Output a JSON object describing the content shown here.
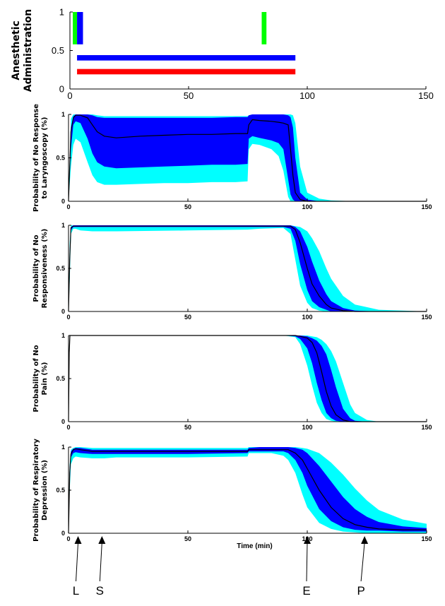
{
  "chart_data": [
    {
      "type": "bar",
      "ylabel": [
        "Anesthetic",
        "Administration"
      ],
      "xlim": [
        0,
        150
      ],
      "ylim": [
        0,
        1
      ],
      "xticks": [
        "0",
        "50",
        "100",
        "150"
      ],
      "yticks": [
        "0",
        "0.5",
        "1"
      ],
      "bolus_bars": [
        {
          "x_start": 1.2,
          "x_end": 3.0,
          "y_start": 0.58,
          "y_end": 1.0,
          "color": "#00ff00"
        },
        {
          "x_start": 3.0,
          "x_end": 5.5,
          "y_start": 0.58,
          "y_end": 1.0,
          "color": "#0000ff"
        },
        {
          "x_start": 80.8,
          "x_end": 82.8,
          "y_start": 0.58,
          "y_end": 1.0,
          "color": "#00ff00"
        }
      ],
      "infusion_bars": [
        {
          "x_start": 3.0,
          "x_end": 95,
          "y_start": 0.37,
          "y_end": 0.44,
          "color": "#0000ff"
        },
        {
          "x_start": 3.0,
          "x_end": 95,
          "y_start": 0.19,
          "y_end": 0.26,
          "color": "#ff0000"
        }
      ]
    },
    {
      "type": "area",
      "ylabel": [
        "Probability of No Response",
        "to Laryngoscopy (%)"
      ],
      "xlim": [
        0,
        150
      ],
      "ylim": [
        0,
        1
      ],
      "xticks": [
        "0",
        "50",
        "100",
        "150"
      ],
      "yticks": [
        "0",
        "0.5",
        "1"
      ],
      "x": [
        0,
        1,
        2,
        3,
        5,
        8,
        10,
        12,
        15,
        20,
        30,
        40,
        50,
        60,
        70,
        75,
        75.5,
        77,
        80,
        85,
        88,
        90,
        92,
        93,
        94,
        95,
        97,
        100,
        105,
        110,
        120,
        150
      ],
      "outer_hi": [
        0,
        0.95,
        1.0,
        1.0,
        1.0,
        1.0,
        1.0,
        0.99,
        0.98,
        0.98,
        0.98,
        0.98,
        0.98,
        0.98,
        0.98,
        0.98,
        0.99,
        1.0,
        1.0,
        1.0,
        1.0,
        1.0,
        1.0,
        1.0,
        0.99,
        0.9,
        0.4,
        0.1,
        0.03,
        0.01,
        0.0,
        0.0
      ],
      "inner_hi": [
        0,
        0.85,
        0.98,
        1.0,
        1.0,
        1.0,
        0.99,
        0.97,
        0.96,
        0.96,
        0.96,
        0.96,
        0.96,
        0.96,
        0.97,
        0.97,
        0.99,
        1.0,
        1.0,
        1.0,
        1.0,
        1.0,
        0.99,
        0.97,
        0.85,
        0.5,
        0.1,
        0.02,
        0.0,
        0.0,
        0.0,
        0.0
      ],
      "median": [
        0,
        0.8,
        0.96,
        0.99,
        0.99,
        0.96,
        0.88,
        0.8,
        0.75,
        0.73,
        0.75,
        0.76,
        0.77,
        0.77,
        0.78,
        0.78,
        0.88,
        0.94,
        0.93,
        0.92,
        0.91,
        0.9,
        0.88,
        0.6,
        0.3,
        0.1,
        0.02,
        0.0,
        0.0,
        0.0,
        0.0,
        0.0
      ],
      "inner_lo": [
        0,
        0.6,
        0.88,
        0.92,
        0.9,
        0.72,
        0.55,
        0.45,
        0.4,
        0.38,
        0.39,
        0.4,
        0.41,
        0.42,
        0.42,
        0.43,
        0.72,
        0.75,
        0.73,
        0.7,
        0.67,
        0.6,
        0.25,
        0.08,
        0.02,
        0.0,
        0.0,
        0.0,
        0.0,
        0.0,
        0.0,
        0.0
      ],
      "outer_lo": [
        0,
        0.4,
        0.65,
        0.72,
        0.68,
        0.45,
        0.3,
        0.22,
        0.19,
        0.19,
        0.2,
        0.21,
        0.21,
        0.22,
        0.22,
        0.23,
        0.6,
        0.66,
        0.65,
        0.6,
        0.52,
        0.35,
        0.05,
        0.0,
        0.0,
        0.0,
        0.0,
        0.0,
        0.0,
        0.0,
        0.0,
        0.0
      ]
    },
    {
      "type": "area",
      "ylabel": [
        "Probability of No",
        "Responsiveness (%)"
      ],
      "xlim": [
        0,
        150
      ],
      "ylim": [
        0,
        1
      ],
      "xticks": [
        "0",
        "50",
        "100",
        "150"
      ],
      "yticks": [
        "0",
        "0.5",
        "1"
      ],
      "x": [
        0,
        0.5,
        1,
        2,
        3,
        5,
        10,
        20,
        50,
        75,
        80,
        90,
        93,
        95,
        97,
        100,
        102,
        105,
        108,
        110,
        115,
        120,
        130,
        140,
        150
      ],
      "outer_hi": [
        0,
        0.8,
        1.0,
        1.0,
        1.0,
        1.0,
        1.0,
        1.0,
        1.0,
        1.0,
        1.0,
        1.0,
        1.0,
        0.99,
        0.98,
        0.93,
        0.85,
        0.7,
        0.5,
        0.38,
        0.18,
        0.08,
        0.02,
        0.01,
        0.0
      ],
      "inner_hi": [
        0,
        0.7,
        0.98,
        1.0,
        1.0,
        1.0,
        1.0,
        1.0,
        1.0,
        1.0,
        1.0,
        1.0,
        1.0,
        0.98,
        0.93,
        0.75,
        0.58,
        0.36,
        0.2,
        0.12,
        0.04,
        0.01,
        0.0,
        0.0,
        0.0
      ],
      "median": [
        0,
        0.6,
        0.97,
        0.99,
        0.99,
        0.99,
        0.99,
        0.99,
        0.99,
        0.99,
        0.99,
        0.99,
        0.99,
        0.95,
        0.8,
        0.5,
        0.32,
        0.18,
        0.08,
        0.04,
        0.01,
        0.0,
        0.0,
        0.0,
        0.0
      ],
      "inner_lo": [
        0,
        0.5,
        0.94,
        0.98,
        0.98,
        0.98,
        0.98,
        0.98,
        0.98,
        0.98,
        0.98,
        0.98,
        0.96,
        0.82,
        0.55,
        0.25,
        0.12,
        0.05,
        0.02,
        0.0,
        0.0,
        0.0,
        0.0,
        0.0,
        0.0
      ],
      "outer_lo": [
        0,
        0.35,
        0.9,
        0.96,
        0.96,
        0.94,
        0.93,
        0.93,
        0.94,
        0.95,
        0.96,
        0.97,
        0.9,
        0.6,
        0.3,
        0.1,
        0.04,
        0.01,
        0.0,
        0.0,
        0.0,
        0.0,
        0.0,
        0.0,
        0.0
      ]
    },
    {
      "type": "area",
      "ylabel": [
        "Probability of No",
        "Pain (%)"
      ],
      "xlim": [
        0,
        150
      ],
      "ylim": [
        0,
        1
      ],
      "xticks": [
        "0",
        "50",
        "100",
        "150"
      ],
      "yticks": [
        "0",
        "0.5",
        "1"
      ],
      "x": [
        0,
        0.3,
        0.6,
        1,
        5,
        50,
        90,
        95,
        97,
        100,
        102,
        104,
        106,
        108,
        110,
        112,
        115,
        118,
        120,
        125,
        130,
        150
      ],
      "outer_hi": [
        0,
        0.9,
        1.0,
        1.0,
        1.0,
        1.0,
        1.0,
        1.0,
        1.0,
        1.0,
        0.99,
        0.98,
        0.95,
        0.9,
        0.82,
        0.7,
        0.45,
        0.2,
        0.1,
        0.02,
        0.0,
        0.0
      ],
      "inner_hi": [
        0,
        0.85,
        1.0,
        1.0,
        1.0,
        1.0,
        1.0,
        1.0,
        1.0,
        0.99,
        0.97,
        0.94,
        0.88,
        0.78,
        0.6,
        0.4,
        0.15,
        0.04,
        0.01,
        0.0,
        0.0,
        0.0
      ],
      "median": [
        0,
        0.8,
        1.0,
        1.0,
        1.0,
        1.0,
        1.0,
        1.0,
        0.99,
        0.97,
        0.92,
        0.8,
        0.58,
        0.35,
        0.18,
        0.08,
        0.02,
        0.0,
        0.0,
        0.0,
        0.0,
        0.0
      ],
      "inner_lo": [
        0,
        0.75,
        1.0,
        1.0,
        1.0,
        1.0,
        1.0,
        0.99,
        0.96,
        0.85,
        0.68,
        0.45,
        0.25,
        0.1,
        0.04,
        0.01,
        0.0,
        0.0,
        0.0,
        0.0,
        0.0,
        0.0
      ],
      "outer_lo": [
        0,
        0.7,
        0.99,
        1.0,
        1.0,
        1.0,
        1.0,
        0.98,
        0.9,
        0.65,
        0.42,
        0.22,
        0.1,
        0.03,
        0.01,
        0.0,
        0.0,
        0.0,
        0.0,
        0.0,
        0.0,
        0.0
      ]
    },
    {
      "type": "area",
      "ylabel": [
        "Probability of Respiratory",
        "Depression (%)"
      ],
      "xlim": [
        0,
        150
      ],
      "ylim": [
        0,
        1
      ],
      "xticks": [
        "0",
        "50",
        "100",
        "150"
      ],
      "yticks": [
        "0",
        "0.5",
        "1"
      ],
      "xlabel": "Time (min)",
      "x": [
        0,
        0.5,
        1,
        2,
        3,
        5,
        10,
        15,
        20,
        50,
        75,
        75.5,
        80,
        85,
        90,
        92,
        95,
        98,
        100,
        105,
        110,
        115,
        120,
        125,
        130,
        140,
        150
      ],
      "outer_hi": [
        0,
        0.8,
        0.97,
        0.99,
        1.0,
        1.0,
        0.99,
        0.99,
        0.99,
        0.99,
        0.99,
        1.0,
        1.0,
        1.0,
        1.0,
        1.0,
        1.0,
        0.99,
        0.98,
        0.93,
        0.82,
        0.68,
        0.52,
        0.38,
        0.27,
        0.16,
        0.11
      ],
      "inner_hi": [
        0,
        0.75,
        0.95,
        0.98,
        0.99,
        0.99,
        0.97,
        0.97,
        0.97,
        0.97,
        0.97,
        0.99,
        1.0,
        1.0,
        1.0,
        1.0,
        0.99,
        0.97,
        0.93,
        0.78,
        0.6,
        0.42,
        0.28,
        0.19,
        0.13,
        0.08,
        0.06
      ],
      "median": [
        0,
        0.7,
        0.92,
        0.97,
        0.98,
        0.97,
        0.95,
        0.95,
        0.95,
        0.95,
        0.95,
        0.97,
        0.97,
        0.97,
        0.97,
        0.97,
        0.93,
        0.85,
        0.75,
        0.5,
        0.3,
        0.17,
        0.1,
        0.07,
        0.05,
        0.04,
        0.04
      ],
      "inner_lo": [
        0,
        0.6,
        0.88,
        0.93,
        0.94,
        0.93,
        0.92,
        0.92,
        0.92,
        0.92,
        0.93,
        0.95,
        0.95,
        0.95,
        0.95,
        0.93,
        0.85,
        0.7,
        0.55,
        0.28,
        0.14,
        0.07,
        0.04,
        0.03,
        0.03,
        0.02,
        0.02
      ],
      "outer_lo": [
        0,
        0.5,
        0.8,
        0.87,
        0.89,
        0.88,
        0.87,
        0.87,
        0.88,
        0.88,
        0.89,
        0.93,
        0.93,
        0.93,
        0.9,
        0.85,
        0.7,
        0.45,
        0.3,
        0.12,
        0.05,
        0.02,
        0.01,
        0.0,
        0.0,
        0.0,
        0.0
      ]
    }
  ],
  "colors": {
    "outer_band": "#00ffff",
    "inner_band": "#0000ff",
    "median_line": "#000000",
    "axis": "#000000"
  },
  "markers": [
    {
      "label": "L",
      "x": 4
    },
    {
      "label": "S",
      "x": 14
    },
    {
      "label": "E",
      "x": 100
    },
    {
      "label": "P",
      "x": 124
    }
  ]
}
